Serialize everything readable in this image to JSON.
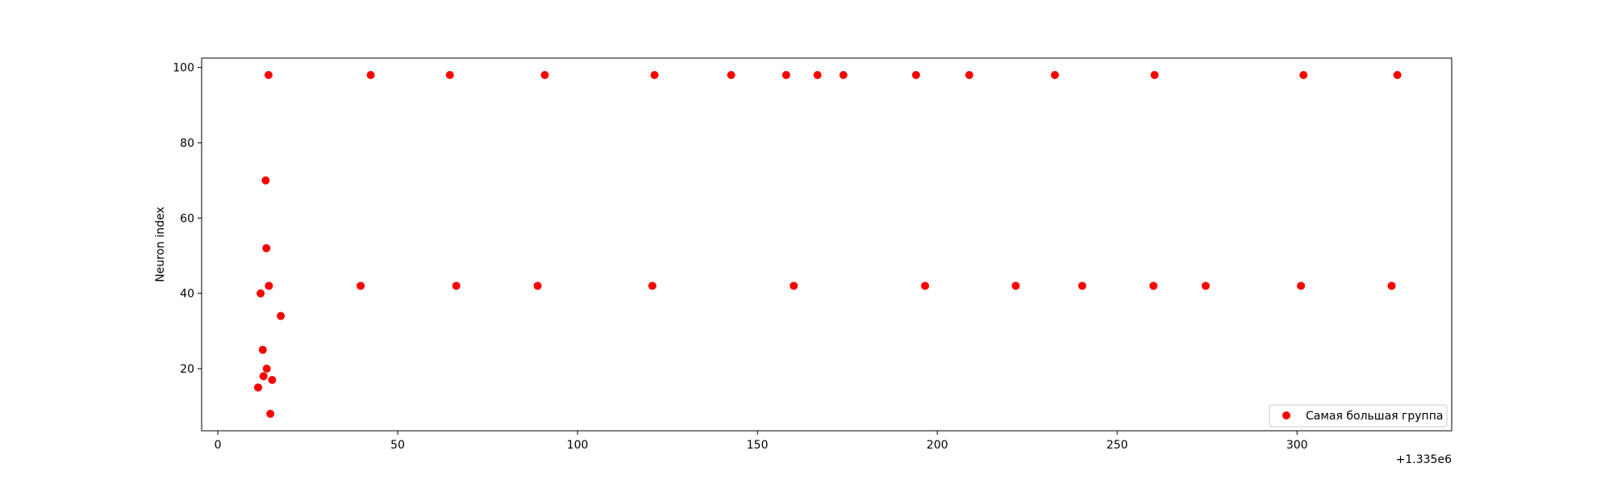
{
  "chart_data": {
    "type": "scatter",
    "ylabel": "Neuron index",
    "xlabel": "",
    "x_offset_label": "+1.335e6",
    "xlim": [
      -4.5,
      343
    ],
    "ylim": [
      3.5,
      102.5
    ],
    "x_ticks": [
      0,
      50,
      100,
      150,
      200,
      250,
      300
    ],
    "y_ticks": [
      20,
      40,
      60,
      80,
      100
    ],
    "grid": false,
    "legend_position": "lower-right",
    "series": [
      {
        "name": "Самая большая группа",
        "color": "#ff0000",
        "points": [
          {
            "x": 11.2,
            "y": 15
          },
          {
            "x": 11.9,
            "y": 40
          },
          {
            "x": 12.5,
            "y": 25
          },
          {
            "x": 12.7,
            "y": 18
          },
          {
            "x": 13.3,
            "y": 70
          },
          {
            "x": 13.5,
            "y": 52
          },
          {
            "x": 13.6,
            "y": 20
          },
          {
            "x": 14.1,
            "y": 98
          },
          {
            "x": 14.2,
            "y": 42
          },
          {
            "x": 14.6,
            "y": 8
          },
          {
            "x": 15.1,
            "y": 17
          },
          {
            "x": 17.5,
            "y": 34
          },
          {
            "x": 39.7,
            "y": 42
          },
          {
            "x": 42.5,
            "y": 98
          },
          {
            "x": 64.5,
            "y": 98
          },
          {
            "x": 66.3,
            "y": 42
          },
          {
            "x": 88.9,
            "y": 42
          },
          {
            "x": 90.9,
            "y": 98
          },
          {
            "x": 120.8,
            "y": 42
          },
          {
            "x": 121.4,
            "y": 98
          },
          {
            "x": 142.7,
            "y": 98
          },
          {
            "x": 158.0,
            "y": 98
          },
          {
            "x": 160.1,
            "y": 42
          },
          {
            "x": 166.7,
            "y": 98
          },
          {
            "x": 173.9,
            "y": 98
          },
          {
            "x": 194.1,
            "y": 98
          },
          {
            "x": 196.6,
            "y": 42
          },
          {
            "x": 208.9,
            "y": 98
          },
          {
            "x": 221.8,
            "y": 42
          },
          {
            "x": 232.7,
            "y": 98
          },
          {
            "x": 240.3,
            "y": 42
          },
          {
            "x": 260.1,
            "y": 42
          },
          {
            "x": 260.4,
            "y": 98
          },
          {
            "x": 274.6,
            "y": 42
          },
          {
            "x": 301.1,
            "y": 42
          },
          {
            "x": 301.8,
            "y": 98
          },
          {
            "x": 326.3,
            "y": 42
          },
          {
            "x": 327.9,
            "y": 98
          }
        ]
      }
    ]
  }
}
